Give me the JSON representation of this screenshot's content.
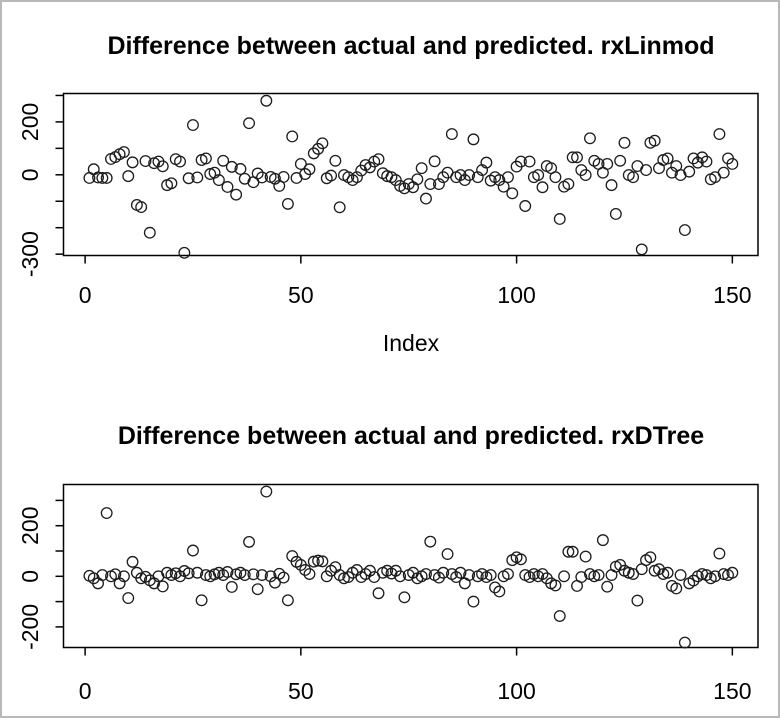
{
  "figure": {
    "background": "#ffffff",
    "border_color": "#b9b9b9",
    "point_color": "#1c1c1c",
    "axis_color": "#000000",
    "marker": "open-circle"
  },
  "chart_data": [
    {
      "type": "scatter",
      "title": "Difference between actual and predicted. rxLinmod",
      "xlabel": "Index",
      "ylabel": "",
      "x_ticks": [
        0,
        50,
        100,
        150
      ],
      "y_ticks": [
        300,
        200,
        100,
        0,
        -100,
        -200,
        -300
      ],
      "y_tick_labels_shown": [
        "200",
        "0",
        "-300"
      ],
      "xlim": [
        -5,
        156
      ],
      "ylim": [
        -315,
        310
      ],
      "grid": false,
      "legend": "none",
      "x_start": 1,
      "values": [
        -12,
        21,
        -10,
        -12,
        -12,
        60,
        67,
        78,
        86,
        -5,
        47,
        -114,
        -122,
        52,
        -219,
        44,
        50,
        32,
        -39,
        -32,
        59,
        50,
        -295,
        -13,
        188,
        -10,
        56,
        62,
        3,
        8,
        -20,
        53,
        -46,
        30,
        -75,
        22,
        -15,
        195,
        -28,
        5,
        -10,
        280,
        -8,
        -15,
        -42,
        -8,
        -110,
        145,
        -12,
        41,
        3,
        21,
        81,
        98,
        119,
        -13,
        -3,
        53,
        -123,
        -1,
        -9,
        -20,
        -9,
        16,
        37,
        28,
        50,
        59,
        6,
        -5,
        -9,
        -20,
        -42,
        -51,
        -35,
        -47,
        -17,
        25,
        -90,
        -35,
        51,
        -35,
        -9,
        8,
        154,
        -9,
        -1,
        -20,
        -1,
        134,
        -9,
        18,
        46,
        -22,
        -9,
        -20,
        -45,
        -9,
        -70,
        31,
        50,
        -118,
        50,
        -9,
        -1,
        -47,
        33,
        25,
        -9,
        -167,
        -45,
        -35,
        66,
        66,
        18,
        -1,
        138,
        53,
        41,
        8,
        41,
        -39,
        -148,
        53,
        121,
        -1,
        -9,
        33,
        -282,
        18,
        121,
        129,
        25,
        56,
        62,
        8,
        33,
        -1,
        -209,
        12,
        62,
        46,
        66,
        50,
        -17,
        -9,
        154,
        8,
        62,
        41
      ]
    },
    {
      "type": "scatter",
      "title": "Difference between actual and predicted. rxDTree",
      "xlabel": "",
      "ylabel": "",
      "x_ticks": [
        0,
        50,
        100,
        150
      ],
      "y_ticks": [
        300,
        200,
        100,
        0,
        -100,
        -200,
        -300
      ],
      "y_tick_labels_shown": [
        "200",
        "0",
        "-200"
      ],
      "xlim": [
        -5,
        156
      ],
      "ylim": [
        -295,
        358
      ],
      "grid": false,
      "legend": "none",
      "x_start": 1,
      "values": [
        2,
        -8,
        -28,
        5,
        250,
        0,
        8,
        -28,
        0,
        -86,
        57,
        14,
        -8,
        -2,
        -16,
        -28,
        0,
        -40,
        14,
        5,
        12,
        0,
        21,
        12,
        102,
        14,
        -95,
        5,
        0,
        8,
        14,
        5,
        17,
        -42,
        8,
        14,
        5,
        136,
        8,
        -51,
        5,
        335,
        0,
        -25,
        10,
        -5,
        -95,
        80,
        57,
        45,
        25,
        9,
        58,
        62,
        59,
        0,
        22,
        36,
        5,
        -8,
        -3,
        14,
        25,
        -3,
        9,
        22,
        -3,
        -67,
        14,
        22,
        11,
        22,
        0,
        -83,
        5,
        14,
        -8,
        0,
        9,
        137,
        5,
        -5,
        14,
        88,
        9,
        -3,
        14,
        -28,
        5,
        -100,
        0,
        9,
        -3,
        5,
        -44,
        -60,
        0,
        9,
        64,
        75,
        67,
        5,
        -3,
        9,
        0,
        9,
        -8,
        -28,
        -36,
        -157,
        0,
        97,
        97,
        -38,
        -3,
        78,
        9,
        0,
        5,
        143,
        -41,
        5,
        38,
        45,
        22,
        14,
        9,
        -96,
        28,
        64,
        75,
        22,
        28,
        9,
        14,
        -38,
        -48,
        5,
        -262,
        -28,
        -17,
        0,
        9,
        5,
        -8,
        0,
        90,
        9,
        5,
        14
      ]
    }
  ]
}
